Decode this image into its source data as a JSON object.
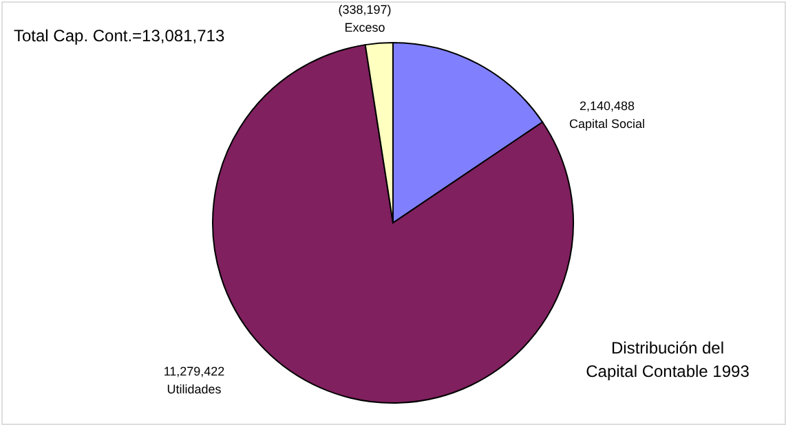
{
  "chart_data": {
    "type": "pie",
    "title": "Total Cap. Cont.=13,081,713",
    "categories": [
      "Capital Social",
      "Utilidades",
      "Exceso"
    ],
    "values": [
      2140488,
      11279422,
      338197
    ],
    "value_labels": [
      "2,140,488",
      "11,279,422",
      "(338,197)"
    ],
    "colors": [
      "#8080ff",
      "#80205f",
      "#ffffc0"
    ],
    "annotations": [
      "Distribución del Capital Contable 1993"
    ]
  }
}
